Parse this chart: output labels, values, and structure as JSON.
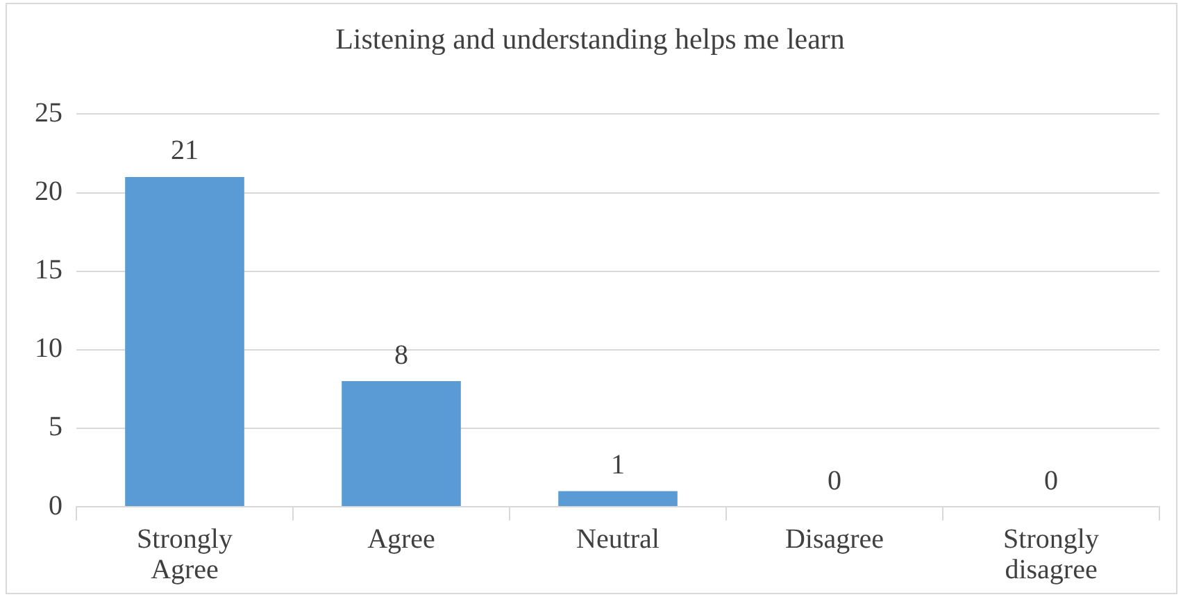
{
  "chart_data": {
    "type": "bar",
    "title": "Listening and understanding helps me learn",
    "categories": [
      "Strongly Agree",
      "Agree",
      "Neutral",
      "Disagree",
      "Strongly disagree"
    ],
    "values": [
      21,
      8,
      1,
      0,
      0
    ],
    "color": "#5b9bd5",
    "ylim": [
      0,
      25
    ],
    "yticks": [
      0,
      5,
      10,
      15,
      20,
      25
    ],
    "grid": "y",
    "data_labels": true
  }
}
